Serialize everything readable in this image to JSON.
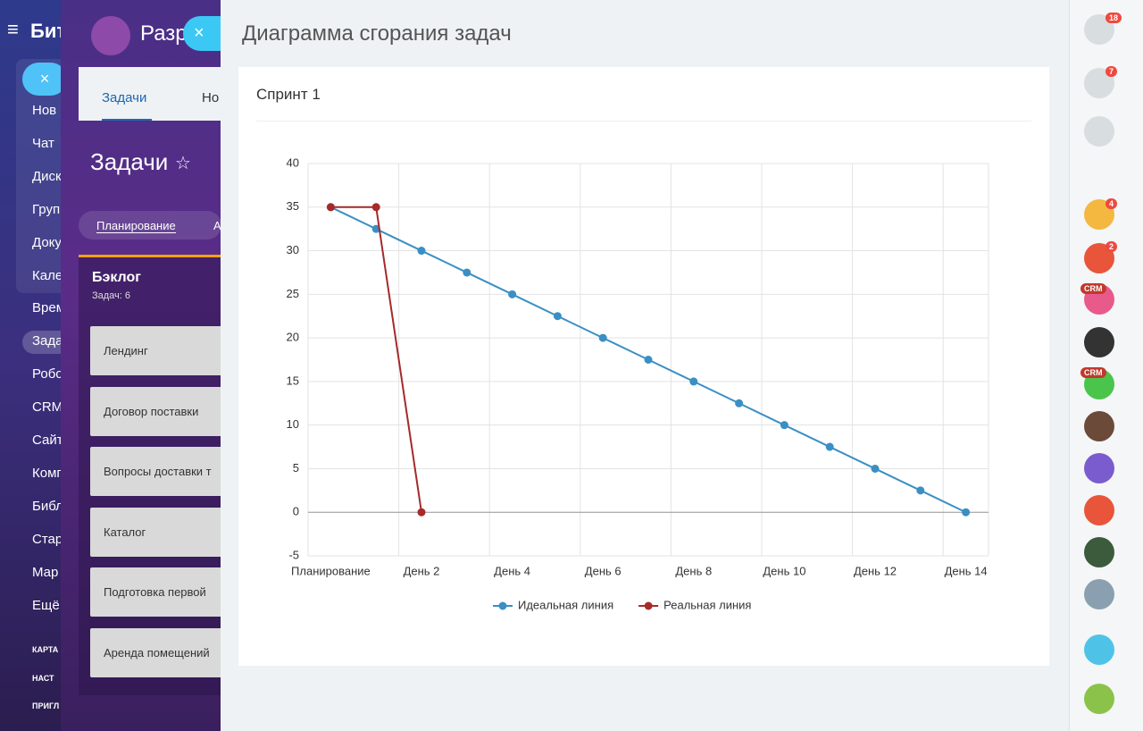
{
  "sidebar": {
    "logo": "Бит",
    "menu": [
      "Нов",
      "Чат",
      "Диск",
      "Груп",
      "Доку",
      "Кале",
      "Врем",
      "Зада",
      "Робо",
      "CRM",
      "Сайт",
      "Комп",
      "Библ",
      "Стар",
      "Мар",
      "Ещё"
    ],
    "footer": [
      "КАРТА",
      "НАСТ",
      "ПРИГЛ"
    ]
  },
  "tasks_panel": {
    "title": "Разр",
    "tabs": [
      "Задачи",
      "Но"
    ],
    "heading": "Задачи",
    "filters": [
      "Планирование",
      "А"
    ],
    "backlog": {
      "title": "Бэклог",
      "count": "Задач: 6",
      "items": [
        "Лендинг",
        "Договор поставки",
        "Вопросы доставки т",
        "Каталог",
        "Подготовка первой",
        "Аренда помещений"
      ]
    }
  },
  "slider": {
    "title": "Диаграмма сгорания задач",
    "card_title": "Спринт 1"
  },
  "chart_data": {
    "type": "line",
    "categories": [
      "Планирование",
      null,
      "День 2",
      null,
      "День 4",
      null,
      "День 6",
      null,
      "День 8",
      null,
      "День 10",
      null,
      "День 12",
      null,
      "День 14"
    ],
    "series": [
      {
        "name": "Идеальная линия",
        "color": "#3a8fc4",
        "values": [
          35,
          32.5,
          30,
          27.5,
          25,
          22.5,
          20,
          17.5,
          15,
          12.5,
          10,
          7.5,
          5,
          2.5,
          0
        ]
      },
      {
        "name": "Реальная линия",
        "color": "#a52a2a",
        "values": [
          35,
          35,
          0,
          null,
          null,
          null,
          null,
          null,
          null,
          null,
          null,
          null,
          null,
          null,
          null
        ]
      }
    ],
    "ylim": [
      -5,
      40
    ],
    "yticks": [
      -5,
      0,
      5,
      10,
      15,
      20,
      25,
      30,
      35,
      40
    ],
    "grid": true,
    "legend": "bottom"
  },
  "right_bar": {
    "badges": [
      "18",
      "7",
      "4",
      "2",
      "CRM",
      "CRM"
    ]
  }
}
